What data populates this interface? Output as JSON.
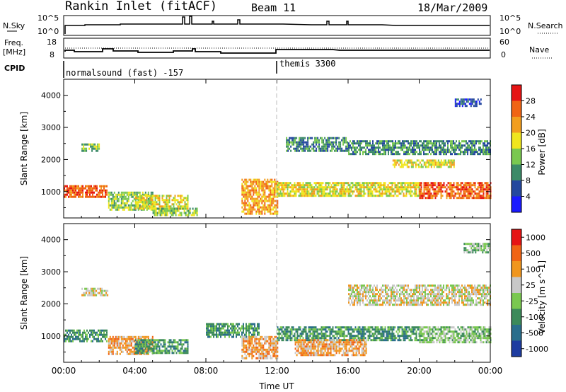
{
  "header": {
    "station": "Rankin Inlet (fitACF)",
    "beam": "Beam 11",
    "date": "18/Mar/2009"
  },
  "sky_panel": {
    "left_label": "N.Sky",
    "left_ticks": [
      "10^5",
      "10^0"
    ],
    "right_label": "N.Search",
    "right_ticks": [
      "10^5",
      "10^0"
    ]
  },
  "freq_panel": {
    "left_label_1": "Freq.",
    "left_label_2": "[MHz]",
    "left_ticks": [
      "18",
      "8"
    ],
    "right_label": "Nave",
    "right_ticks": [
      "60",
      "0"
    ]
  },
  "cpid": {
    "label": "CPID",
    "program_1": "normalsound (fast) -157",
    "program_2": "themis 3300"
  },
  "chart_data": [
    {
      "type": "heatmap",
      "title": "",
      "ylabel": "Slant Range [km]",
      "ylim": [
        180,
        4500
      ],
      "yticks": [
        "1000",
        "2000",
        "3000",
        "4000"
      ],
      "xlim_hours": [
        0,
        24
      ],
      "xticks": [
        "00:00",
        "04:00",
        "08:00",
        "12:00",
        "16:00",
        "20:00",
        "00:00"
      ],
      "colorbar_label": "Power [dB]",
      "colorbar_ticks": [
        "4",
        "8",
        "12",
        "16",
        "20",
        "24",
        "28"
      ],
      "colors": [
        "#1a1aff",
        "#24489e",
        "#3c8a68",
        "#7ac850",
        "#f0e61e",
        "#f29e1e",
        "#f06414",
        "#e61414"
      ],
      "bands": [
        {
          "t": [
            0.0,
            2.4
          ],
          "r": [
            820,
            1200
          ],
          "level": 6
        },
        {
          "t": [
            1.0,
            2.0
          ],
          "r": [
            2300,
            2500
          ],
          "level": 3
        },
        {
          "t": [
            2.5,
            5.0
          ],
          "r": [
            450,
            1000
          ],
          "level": 3
        },
        {
          "t": [
            4.0,
            7.0
          ],
          "r": [
            500,
            900
          ],
          "level": 4
        },
        {
          "t": [
            5.0,
            7.5
          ],
          "r": [
            250,
            500
          ],
          "level": 3
        },
        {
          "t": [
            10.0,
            12.0
          ],
          "r": [
            300,
            1400
          ],
          "level": 5
        },
        {
          "t": [
            12.0,
            20.0
          ],
          "r": [
            850,
            1300
          ],
          "level": 4
        },
        {
          "t": [
            12.5,
            16.0
          ],
          "r": [
            2300,
            2700
          ],
          "level": 2
        },
        {
          "t": [
            16.0,
            24.0
          ],
          "r": [
            2200,
            2600
          ],
          "level": 2
        },
        {
          "t": [
            18.5,
            22.0
          ],
          "r": [
            1750,
            2000
          ],
          "level": 4
        },
        {
          "t": [
            20.0,
            24.0
          ],
          "r": [
            800,
            1300
          ],
          "level": 6
        },
        {
          "t": [
            22.0,
            23.5
          ],
          "r": [
            3700,
            3900
          ],
          "level": 1
        }
      ]
    },
    {
      "type": "heatmap",
      "title": "",
      "ylabel": "Slant Range [km]",
      "ylim": [
        180,
        4500
      ],
      "yticks": [
        "1000",
        "2000",
        "3000",
        "4000"
      ],
      "xlabel": "Time UT",
      "xlim_hours": [
        0,
        24
      ],
      "xticks": [
        "00:00",
        "04:00",
        "08:00",
        "12:00",
        "16:00",
        "20:00",
        "00:00"
      ],
      "colorbar_label": "Velocity [m s^-1]",
      "colorbar_ticks": [
        "1000",
        "500",
        "100",
        "25",
        "-25",
        "-100",
        "-500",
        "-1000"
      ],
      "colors": [
        "#1e3ca0",
        "#2a6e8c",
        "#3c8a5a",
        "#7ac850",
        "#c8c8c8",
        "#f0961e",
        "#f06414",
        "#e61414"
      ],
      "bands": [
        {
          "t": [
            0.0,
            2.4
          ],
          "r": [
            820,
            1200
          ],
          "level": 2
        },
        {
          "t": [
            1.0,
            2.5
          ],
          "r": [
            2300,
            2500
          ],
          "level": 4
        },
        {
          "t": [
            2.5,
            5.0
          ],
          "r": [
            450,
            1000
          ],
          "level": 5
        },
        {
          "t": [
            4.0,
            7.0
          ],
          "r": [
            500,
            900
          ],
          "level": 2
        },
        {
          "t": [
            8.0,
            11.0
          ],
          "r": [
            1000,
            1400
          ],
          "level": 2
        },
        {
          "t": [
            10.0,
            12.0
          ],
          "r": [
            300,
            1000
          ],
          "level": 5
        },
        {
          "t": [
            12.0,
            20.0
          ],
          "r": [
            850,
            1300
          ],
          "level": 2
        },
        {
          "t": [
            13.0,
            17.0
          ],
          "r": [
            400,
            900
          ],
          "level": 5
        },
        {
          "t": [
            16.0,
            24.0
          ],
          "r": [
            2000,
            2600
          ],
          "level": 4
        },
        {
          "t": [
            20.0,
            24.0
          ],
          "r": [
            800,
            1300
          ],
          "level": 3
        },
        {
          "t": [
            22.5,
            24.0
          ],
          "r": [
            3600,
            3900
          ],
          "level": 3
        }
      ]
    }
  ]
}
